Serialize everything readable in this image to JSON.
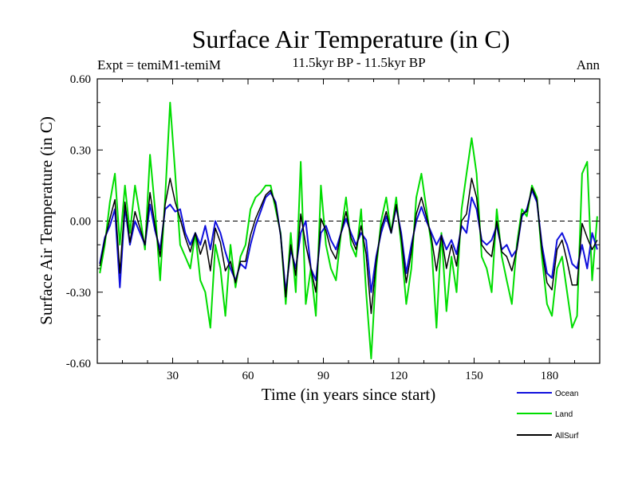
{
  "chart_data": {
    "type": "line",
    "title": "Surface Air Temperature (in C)",
    "subtitle_left": "Expt = temiM1-temiM",
    "subtitle_center": "11.5kyr BP - 11.5kyr BP",
    "subtitle_right": "Ann",
    "xlabel": "Time (in years since start)",
    "ylabel": "Surface Air Temperature (in C)",
    "xlim": [
      0,
      200
    ],
    "ylim": [
      -0.6,
      0.6
    ],
    "xticks": [
      30,
      60,
      90,
      120,
      150,
      180
    ],
    "xtick_labels": [
      "30",
      "60",
      "90",
      "120",
      "150",
      "180"
    ],
    "yticks": [
      -0.6,
      -0.3,
      0.0,
      0.3,
      0.6
    ],
    "ytick_labels": [
      "-0.60",
      "-0.30",
      "0.00",
      "0.30",
      "0.60"
    ],
    "reference_line": 0.0,
    "legend": [
      "Ocean",
      "Land",
      "AllSurf"
    ],
    "legend_position": "bottom-right, outside",
    "x": [
      1,
      3,
      5,
      7,
      9,
      11,
      13,
      15,
      17,
      19,
      21,
      23,
      25,
      27,
      29,
      31,
      33,
      35,
      37,
      39,
      41,
      43,
      45,
      47,
      49,
      51,
      53,
      55,
      57,
      59,
      61,
      63,
      65,
      67,
      69,
      71,
      73,
      75,
      77,
      79,
      81,
      83,
      85,
      87,
      89,
      91,
      93,
      95,
      97,
      99,
      101,
      103,
      105,
      107,
      109,
      111,
      113,
      115,
      117,
      119,
      121,
      123,
      125,
      127,
      129,
      131,
      133,
      135,
      137,
      139,
      141,
      143,
      145,
      147,
      149,
      151,
      153,
      155,
      157,
      159,
      161,
      163,
      165,
      167,
      169,
      171,
      173,
      175,
      177,
      179,
      181,
      183,
      185,
      187,
      189,
      191,
      193,
      195,
      197,
      199
    ],
    "series": [
      {
        "name": "Ocean",
        "color": "#1010dd",
        "values": [
          -0.18,
          -0.07,
          -0.02,
          0.05,
          -0.28,
          0.06,
          -0.1,
          0.0,
          -0.05,
          -0.1,
          0.07,
          -0.04,
          -0.12,
          0.05,
          0.07,
          0.04,
          0.05,
          -0.05,
          -0.1,
          -0.05,
          -0.1,
          -0.02,
          -0.12,
          0.0,
          -0.05,
          -0.13,
          -0.2,
          -0.25,
          -0.18,
          -0.2,
          -0.1,
          -0.02,
          0.04,
          0.1,
          0.12,
          0.08,
          -0.06,
          -0.3,
          -0.12,
          -0.2,
          -0.05,
          0.0,
          -0.2,
          -0.25,
          -0.05,
          -0.02,
          -0.08,
          -0.12,
          -0.05,
          0.01,
          -0.05,
          -0.1,
          -0.05,
          -0.08,
          -0.3,
          -0.15,
          -0.05,
          0.02,
          -0.05,
          0.06,
          -0.05,
          -0.22,
          -0.1,
          0.0,
          0.06,
          0.0,
          -0.05,
          -0.1,
          -0.06,
          -0.12,
          -0.08,
          -0.14,
          -0.02,
          -0.05,
          0.1,
          0.05,
          -0.08,
          -0.1,
          -0.08,
          -0.02,
          -0.12,
          -0.1,
          -0.15,
          -0.12,
          0.02,
          0.05,
          0.13,
          0.08,
          -0.1,
          -0.22,
          -0.24,
          -0.08,
          -0.05,
          -0.1,
          -0.18,
          -0.2,
          -0.1,
          -0.2,
          -0.05,
          -0.12
        ]
      },
      {
        "name": "Land",
        "color": "#00dd00",
        "values": [
          -0.22,
          -0.1,
          0.08,
          0.2,
          -0.1,
          0.15,
          -0.05,
          0.15,
          0.02,
          -0.12,
          0.28,
          0.05,
          -0.25,
          0.1,
          0.5,
          0.2,
          -0.1,
          -0.15,
          -0.2,
          -0.05,
          -0.25,
          -0.3,
          -0.45,
          -0.1,
          -0.2,
          -0.4,
          -0.1,
          -0.28,
          -0.15,
          -0.1,
          0.05,
          0.1,
          0.12,
          0.15,
          0.15,
          0.05,
          -0.05,
          -0.35,
          -0.05,
          -0.3,
          0.25,
          -0.35,
          -0.2,
          -0.4,
          0.15,
          -0.1,
          -0.2,
          -0.25,
          -0.05,
          0.1,
          -0.1,
          -0.15,
          0.05,
          -0.3,
          -0.58,
          -0.2,
          0.0,
          0.1,
          -0.05,
          0.1,
          -0.1,
          -0.35,
          -0.2,
          0.1,
          0.2,
          0.05,
          -0.1,
          -0.45,
          -0.05,
          -0.38,
          -0.15,
          -0.3,
          0.05,
          0.2,
          0.35,
          0.2,
          -0.15,
          -0.2,
          -0.3,
          0.05,
          -0.15,
          -0.25,
          -0.35,
          -0.1,
          0.05,
          0.02,
          0.15,
          0.1,
          -0.15,
          -0.35,
          -0.4,
          -0.2,
          -0.15,
          -0.3,
          -0.45,
          -0.4,
          0.2,
          0.25,
          -0.25,
          0.02
        ]
      },
      {
        "name": "AllSurf",
        "color": "#000000",
        "values": [
          -0.19,
          -0.08,
          0.01,
          0.09,
          -0.22,
          0.08,
          -0.09,
          0.04,
          -0.03,
          -0.1,
          0.12,
          -0.02,
          -0.15,
          0.07,
          0.18,
          0.08,
          0.01,
          -0.07,
          -0.13,
          -0.05,
          -0.14,
          -0.08,
          -0.21,
          -0.03,
          -0.09,
          -0.21,
          -0.17,
          -0.26,
          -0.17,
          -0.17,
          -0.06,
          0.01,
          0.06,
          0.11,
          0.13,
          0.07,
          -0.06,
          -0.32,
          -0.1,
          -0.23,
          0.03,
          -0.1,
          -0.2,
          -0.3,
          0.01,
          -0.04,
          -0.12,
          -0.16,
          -0.05,
          0.04,
          -0.07,
          -0.12,
          -0.02,
          -0.14,
          -0.39,
          -0.17,
          -0.03,
          0.04,
          -0.05,
          0.07,
          -0.07,
          -0.26,
          -0.13,
          0.03,
          0.1,
          0.02,
          -0.07,
          -0.21,
          -0.06,
          -0.2,
          -0.1,
          -0.19,
          0.0,
          0.03,
          0.18,
          0.1,
          -0.1,
          -0.13,
          -0.15,
          0.0,
          -0.13,
          -0.15,
          -0.21,
          -0.12,
          0.03,
          0.04,
          0.14,
          0.09,
          -0.12,
          -0.26,
          -0.29,
          -0.12,
          -0.08,
          -0.17,
          -0.27,
          -0.27,
          -0.01,
          -0.07,
          -0.12,
          -0.08
        ]
      }
    ]
  }
}
